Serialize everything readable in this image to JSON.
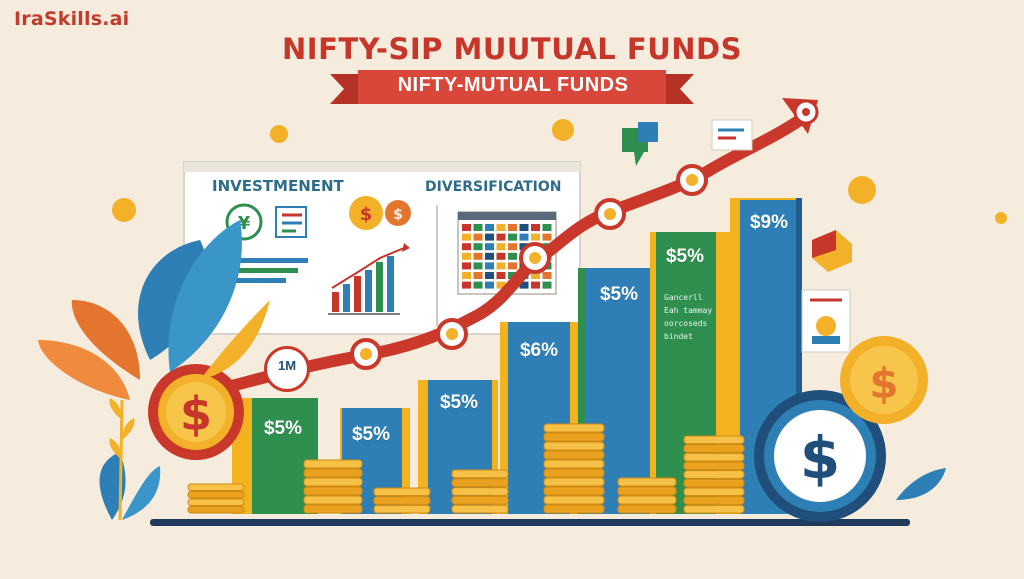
{
  "brand": "IraSkills.ai",
  "title": "NIFTY-SIP MUUTUAL FUNDS",
  "ribbon": "NIFTY-MUTUAL  FUNDS",
  "panel": {
    "investment_heading": "INVESTMENENT",
    "diversification_heading": "DIVERSIFICATION"
  },
  "bar_labels": [
    "$5%",
    "$5%",
    "$5%",
    "$6%",
    "$5%",
    "$5%",
    "$9%"
  ],
  "side_note": [
    "Gancerll",
    "Eah tammay",
    "oorcoseds",
    "bindet"
  ],
  "line_badge": "1M",
  "colors": {
    "background": "#f6ecdd",
    "title_red": "#c7362b",
    "ribbon_red": "#d8473a",
    "arrow_red": "#c9382a",
    "bar_green": "#2e8f4f",
    "bar_blue": "#2d7fb5",
    "bar_yellow": "#f2b31e",
    "coin_gold": "#f3b12a"
  },
  "icons": [
    "dollar-coin-icon",
    "arrow-icon",
    "calendar-grid-icon",
    "bar-chart-icon",
    "leaf-icon",
    "chat-bubble-icon",
    "document-icon",
    "award-icon"
  ]
}
